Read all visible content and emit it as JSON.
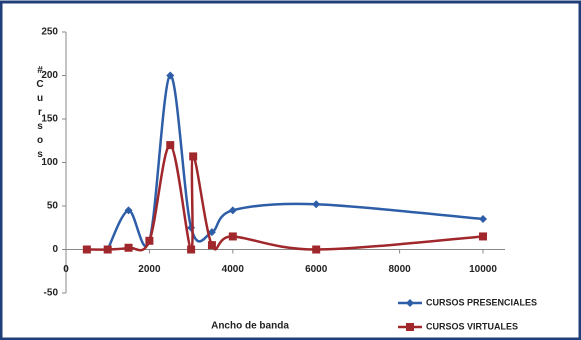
{
  "chart_data": {
    "type": "line",
    "xlabel": "Ancho de banda",
    "ylabel": "# Cursos",
    "xlim": [
      0,
      10000
    ],
    "xticks": [
      0,
      2000,
      4000,
      6000,
      8000,
      10000
    ],
    "ylim": [
      -50,
      250
    ],
    "yticks": [
      -50,
      0,
      50,
      100,
      150,
      200,
      250
    ],
    "smooth": true,
    "legend": "bottom-right",
    "series": [
      {
        "name": "CURSOS PRESENCIALES",
        "color": "#2e5ea8",
        "marker": "diamond",
        "x": [
          1000,
          1500,
          2000,
          2500,
          3000,
          3500,
          4000,
          6000,
          10000
        ],
        "values": [
          0,
          45,
          10,
          200,
          25,
          20,
          45,
          52,
          35
        ]
      },
      {
        "name": "CURSOS VIRTUALES",
        "color": "#a0282c",
        "marker": "square",
        "x": [
          500,
          1000,
          1500,
          2000,
          2500,
          3000,
          3050,
          3500,
          4000,
          6000,
          10000
        ],
        "values": [
          0,
          0,
          2,
          10,
          120,
          0,
          107,
          5,
          15,
          0,
          15
        ]
      }
    ]
  }
}
